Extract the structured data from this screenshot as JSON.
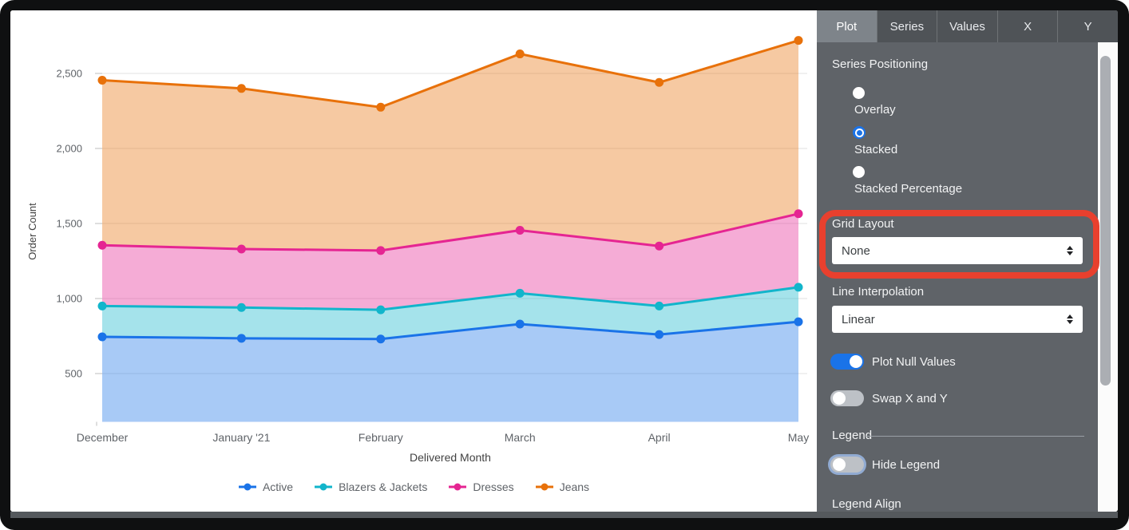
{
  "chart_data": {
    "type": "area",
    "stacking": "stacked",
    "title": "",
    "xlabel": "Delivered Month",
    "ylabel": "Order Count",
    "categories": [
      "December",
      "January '21",
      "February",
      "March",
      "April",
      "May"
    ],
    "y_ticks": [
      "500",
      "1,000",
      "1,500",
      "2,000",
      "2,500"
    ],
    "y_tick_values": [
      500,
      1000,
      1500,
      2000,
      2500
    ],
    "grid": true,
    "legend_position": "bottom",
    "fill_opacity": 0.38,
    "series": [
      {
        "name": "Active",
        "line_color": "#1A73E8",
        "values": [
          745,
          735,
          730,
          830,
          760,
          845
        ],
        "stacked_cumulative_values": [
          745,
          735,
          730,
          830,
          760,
          845
        ]
      },
      {
        "name": "Blazers & Jackets",
        "line_color": "#12B5CB",
        "values": [
          205,
          205,
          195,
          205,
          190,
          230
        ],
        "stacked_cumulative_values": [
          950,
          940,
          925,
          1035,
          950,
          1075
        ]
      },
      {
        "name": "Dresses",
        "line_color": "#E52592",
        "values": [
          405,
          390,
          395,
          420,
          400,
          490
        ],
        "stacked_cumulative_values": [
          1355,
          1330,
          1320,
          1455,
          1350,
          1565
        ]
      },
      {
        "name": "Jeans",
        "line_color": "#E8710A",
        "values": [
          1100,
          1070,
          955,
          1175,
          1090,
          1155
        ],
        "stacked_cumulative_values": [
          2455,
          2400,
          2275,
          2630,
          2440,
          2720
        ]
      }
    ]
  },
  "panel": {
    "tabs": [
      {
        "label": "Plot",
        "active": true
      },
      {
        "label": "Series",
        "active": false
      },
      {
        "label": "Values",
        "active": false
      },
      {
        "label": "X",
        "active": false
      },
      {
        "label": "Y",
        "active": false
      }
    ],
    "series_positioning": {
      "label": "Series Positioning",
      "options": [
        {
          "label": "Overlay",
          "selected": false
        },
        {
          "label": "Stacked",
          "selected": true
        },
        {
          "label": "Stacked Percentage",
          "selected": false
        }
      ]
    },
    "grid_layout": {
      "label": "Grid Layout",
      "value": "None",
      "highlighted": true
    },
    "line_interpolation": {
      "label": "Line Interpolation",
      "value": "Linear"
    },
    "toggles": [
      {
        "label": "Plot Null Values",
        "on": true,
        "focused": false
      },
      {
        "label": "Swap X and Y",
        "on": false,
        "focused": false
      }
    ],
    "legend_section_label": "Legend",
    "hide_legend_toggle": {
      "label": "Hide Legend",
      "on": false,
      "focused": true
    },
    "legend_align_label": "Legend Align",
    "accent_color": "#1A73E8",
    "annotation_color": "#E8402E",
    "panel_bg": "#5F6368"
  }
}
